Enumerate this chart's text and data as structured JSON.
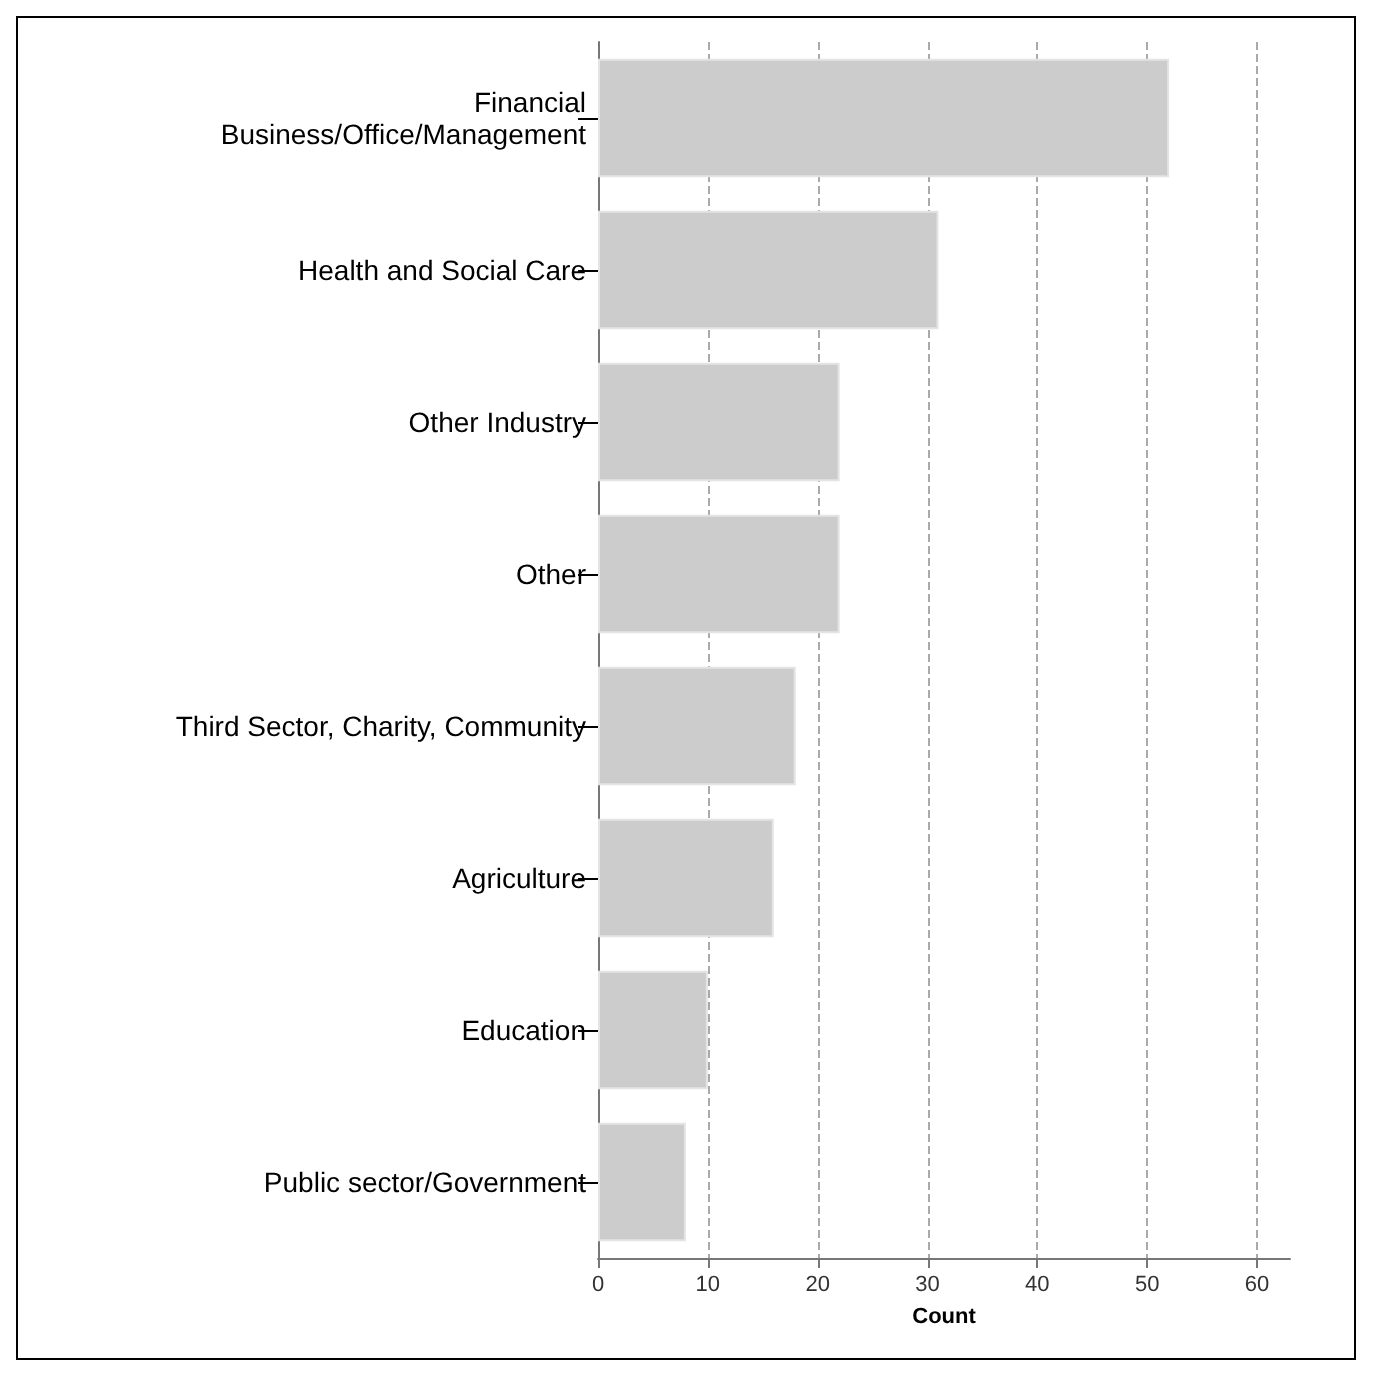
{
  "chart_data": {
    "type": "bar",
    "orientation": "horizontal",
    "xlabel": "Count",
    "categories": [
      "Financial\nBusiness/Office/Management",
      "Health and Social Care",
      "Other Industry",
      "Other",
      "Third Sector, Charity, Community",
      "Agriculture",
      "Education",
      "Public sector/Government"
    ],
    "values": [
      52,
      31,
      22,
      22,
      18,
      16,
      10,
      8
    ],
    "color": "#cccccc",
    "xlim": [
      0,
      63
    ],
    "xticks": [
      0,
      10,
      20,
      30,
      40,
      50,
      60
    ],
    "grid": "x"
  }
}
